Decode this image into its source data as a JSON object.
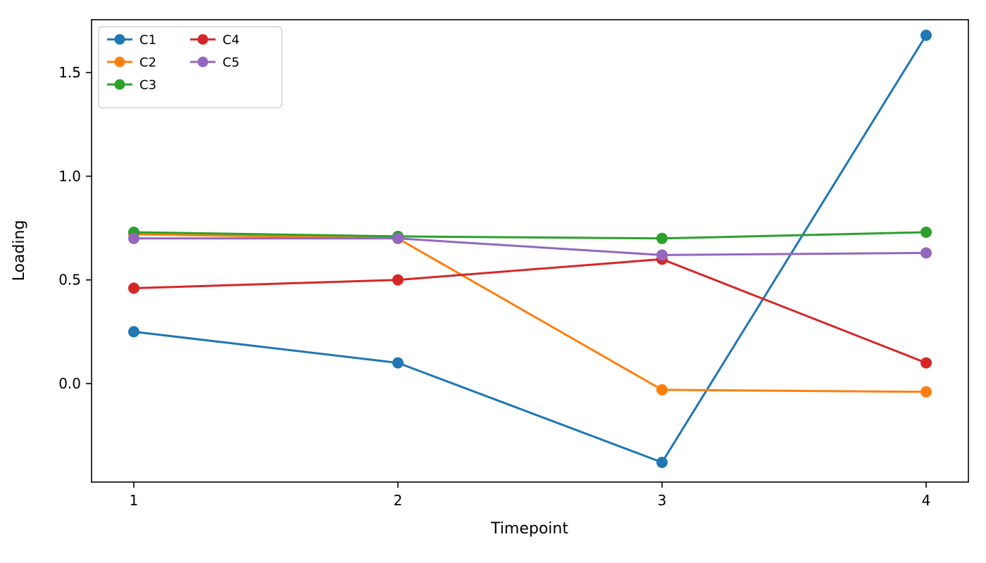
{
  "chart_data": {
    "type": "line",
    "title": "",
    "xlabel": "Timepoint",
    "ylabel": "Loading",
    "x": [
      1,
      2,
      3,
      4
    ],
    "xtick_labels": [
      "1",
      "2",
      "3",
      "4"
    ],
    "yticks": [
      0.0,
      0.5,
      1.0,
      1.5
    ],
    "ytick_labels": [
      "0.0",
      "0.5",
      "1.0",
      "1.5"
    ],
    "xlim": [
      0.84,
      4.16
    ],
    "ylim": [
      -0.475,
      1.755
    ],
    "grid": false,
    "legend": {
      "position": "upper-left",
      "columns": 2,
      "column_major": true,
      "rows": 3
    },
    "series": [
      {
        "name": "C1",
        "color": "#1f77b4",
        "values": [
          0.25,
          0.1,
          -0.38,
          1.68
        ]
      },
      {
        "name": "C2",
        "color": "#ff7f0e",
        "values": [
          0.72,
          0.7,
          -0.03,
          -0.04
        ]
      },
      {
        "name": "C3",
        "color": "#2ca02c",
        "values": [
          0.73,
          0.71,
          0.7,
          0.73
        ]
      },
      {
        "name": "C4",
        "color": "#d62728",
        "values": [
          0.46,
          0.5,
          0.6,
          0.1
        ]
      },
      {
        "name": "C5",
        "color": "#9467bd",
        "values": [
          0.7,
          0.7,
          0.62,
          0.63
        ]
      }
    ],
    "axis_color": "#000000",
    "background_color": "#ffffff",
    "legend_border_color": "#cccccc"
  }
}
